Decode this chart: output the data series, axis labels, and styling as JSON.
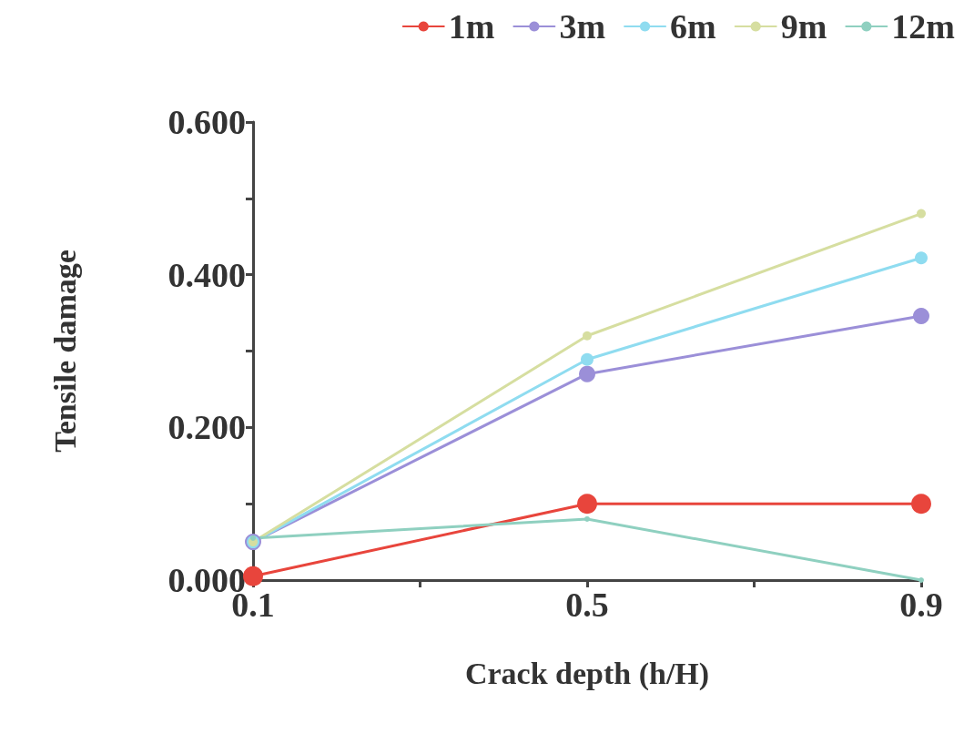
{
  "chart_data": {
    "type": "line",
    "xlabel": "Crack depth (h/H)",
    "ylabel": "Tensile damage",
    "x": [
      0.1,
      0.5,
      0.9
    ],
    "series": [
      {
        "name": "1m",
        "color": "#e8453c",
        "values": [
          0.005,
          0.1,
          0.1
        ]
      },
      {
        "name": "3m",
        "color": "#9b8fd8",
        "values": [
          0.05,
          0.27,
          0.346
        ]
      },
      {
        "name": "6m",
        "color": "#8fdcf0",
        "values": [
          0.05,
          0.289,
          0.422
        ]
      },
      {
        "name": "9m",
        "color": "#d6dea0",
        "values": [
          0.05,
          0.32,
          0.48
        ]
      },
      {
        "name": "12m",
        "color": "#8fd0c0",
        "values": [
          0.055,
          0.08,
          0.0
        ]
      }
    ],
    "xlim": [
      0.1,
      0.9
    ],
    "xticks": [
      0.1,
      {
        "value": 0.3,
        "label": null
      },
      0.5,
      {
        "value": 0.7,
        "label": null
      },
      0.9
    ],
    "ylim": [
      0,
      0.6
    ],
    "yticks": [
      {
        "value": 0,
        "label": "0.000"
      },
      {
        "value": 0.1,
        "label": null
      },
      {
        "value": 0.2,
        "label": "0.200"
      },
      {
        "value": 0.3,
        "label": null
      },
      {
        "value": 0.4,
        "label": "0.400"
      },
      {
        "value": 0.5,
        "label": null
      },
      {
        "value": 0.6,
        "label": "0.600"
      }
    ],
    "grid": false,
    "legend": "top right",
    "marker": "circle",
    "line_style": "solid"
  }
}
